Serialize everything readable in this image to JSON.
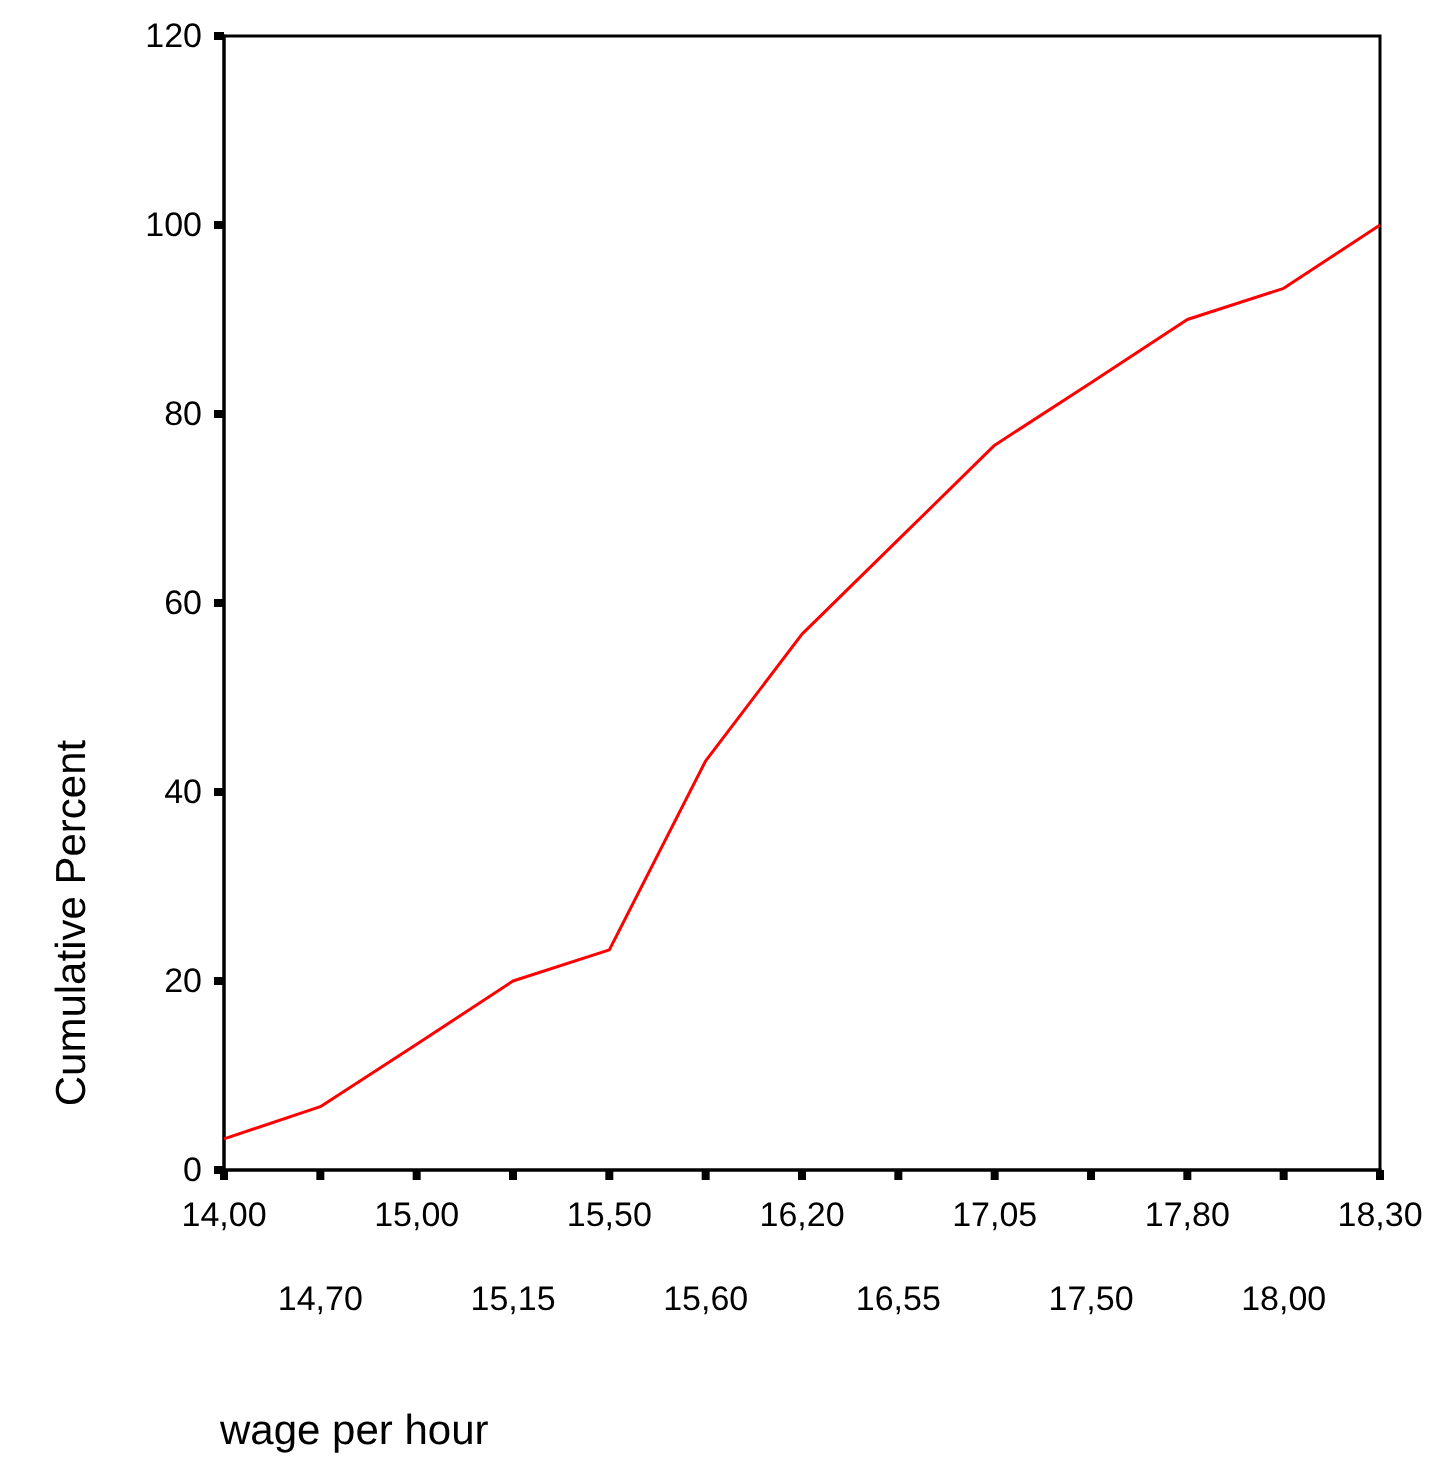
{
  "chart_data": {
    "type": "line",
    "xlabel": "wage per hour",
    "ylabel": "Cumulative Percent",
    "categories": [
      "14,00",
      "14,70",
      "15,00",
      "15,15",
      "15,50",
      "15,60",
      "16,20",
      "16,55",
      "17,05",
      "17,50",
      "17,80",
      "18,00",
      "18,30"
    ],
    "series": [
      {
        "color": "#ff0000",
        "values": [
          3.3,
          6.7,
          13.3,
          20,
          23.3,
          43.3,
          56.7,
          66.7,
          76.7,
          83.3,
          90,
          93.3,
          100
        ]
      }
    ],
    "ylim": [
      0,
      120
    ],
    "yticks": [
      0,
      20,
      40,
      60,
      80,
      100,
      120
    ],
    "line_style": "solid"
  }
}
